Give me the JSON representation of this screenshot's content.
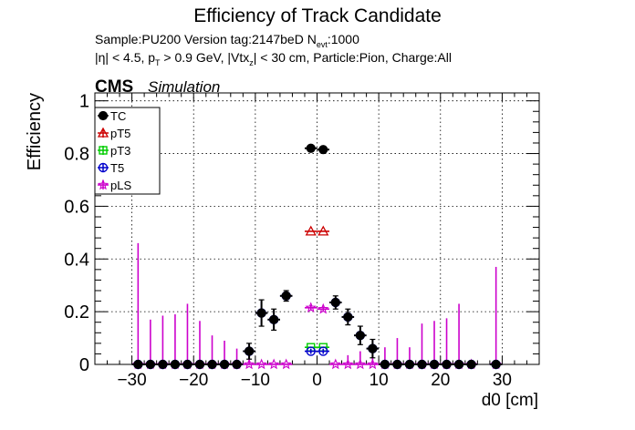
{
  "chart_data": {
    "type": "scatter",
    "title": "Efficiency of Track Candidate",
    "subtitle_line1": "Sample:PU200   Version tag:2147beD  N",
    "subtitle_line1_sub": "evt",
    "subtitle_line1_tail": ":1000",
    "subtitle_line2": "|η| < 4.5, p",
    "subtitle_line2_sub1": "T",
    "subtitle_line2_mid": " > 0.9 GeV, |Vtx",
    "subtitle_line2_sub2": "z",
    "subtitle_line2_tail": "| < 30 cm, Particle:Pion, Charge:All",
    "cms_label": "CMS",
    "cms_sublabel": "Simulation",
    "xlabel": "d0 [cm]",
    "ylabel": "Efficiency",
    "xlim": [
      -36,
      36
    ],
    "ylim": [
      0,
      1.03
    ],
    "x_ticks": [
      -30,
      -20,
      -10,
      0,
      10,
      20,
      30
    ],
    "x_tick_labels": [
      "−30",
      "−20",
      "−10",
      "0",
      "10",
      "20",
      "30"
    ],
    "y_ticks": [
      0,
      0.2,
      0.4,
      0.6,
      0.8,
      1
    ],
    "y_tick_labels": [
      "0",
      "0.2",
      "0.4",
      "0.6",
      "0.8",
      "1"
    ],
    "grid": true,
    "legend_position": "top-left",
    "bin_x": [
      -29,
      -27,
      -25,
      -23,
      -21,
      -19,
      -17,
      -15,
      -13,
      -11,
      -9,
      -7,
      -5,
      -3,
      -1,
      1,
      3,
      5,
      7,
      9,
      11,
      13,
      15,
      17,
      19,
      21,
      23,
      25,
      27,
      29
    ],
    "bin_halfwidth": 1,
    "series": [
      {
        "name": "TC",
        "color": "#000000",
        "marker": "filled-circle",
        "values": [
          0,
          0,
          0,
          0,
          0,
          0,
          0,
          0,
          0,
          0.05,
          0.195,
          0.17,
          0.26,
          null,
          0.82,
          0.815,
          0.235,
          0.18,
          0.11,
          0.06,
          0,
          0,
          0,
          0,
          0,
          0,
          0,
          0,
          null,
          0
        ],
        "err_up": [
          0,
          0,
          0,
          0,
          0,
          0,
          0,
          0,
          0,
          0.03,
          0.05,
          0.04,
          0.02,
          0,
          0.01,
          0.01,
          0.025,
          0.03,
          0.035,
          0.035,
          0,
          0,
          0,
          0,
          0,
          0,
          0,
          0,
          0,
          0
        ],
        "err_down": [
          0,
          0,
          0,
          0,
          0,
          0,
          0,
          0,
          0,
          0.03,
          0.05,
          0.04,
          0.02,
          0,
          0.01,
          0.01,
          0.025,
          0.03,
          0.035,
          0.035,
          0,
          0,
          0,
          0,
          0,
          0,
          0,
          0,
          0,
          0
        ]
      },
      {
        "name": "pT5",
        "color": "#cc0000",
        "marker": "open-triangle",
        "values": [
          null,
          null,
          null,
          null,
          null,
          null,
          null,
          null,
          null,
          null,
          null,
          null,
          null,
          null,
          0.505,
          0.505,
          null,
          null,
          null,
          null,
          null,
          null,
          null,
          null,
          null,
          null,
          null,
          null,
          null,
          null
        ]
      },
      {
        "name": "pT3",
        "color": "#00cc00",
        "marker": "open-square",
        "values": [
          null,
          null,
          null,
          null,
          null,
          null,
          null,
          null,
          null,
          null,
          null,
          null,
          null,
          null,
          0.065,
          0.065,
          null,
          null,
          null,
          null,
          null,
          null,
          null,
          null,
          null,
          null,
          null,
          null,
          null,
          null
        ]
      },
      {
        "name": "T5",
        "color": "#0000cc",
        "marker": "open-circle",
        "values": [
          0,
          0,
          0,
          0,
          0,
          0,
          0,
          0,
          0,
          0.05,
          0.195,
          0.17,
          0.26,
          null,
          0.05,
          0.05,
          0.235,
          0.18,
          0.11,
          0.06,
          0,
          0,
          0,
          0,
          0,
          0,
          0,
          0,
          null,
          0
        ],
        "err_up": [
          0,
          0,
          0,
          0,
          0,
          0,
          0,
          0,
          0,
          0.03,
          0.05,
          0.04,
          0.02,
          0,
          0.01,
          0.01,
          0.025,
          0.03,
          0.035,
          0.035,
          0,
          0,
          0,
          0,
          0,
          0,
          0,
          0,
          0,
          0
        ],
        "err_down": [
          0,
          0,
          0,
          0,
          0,
          0,
          0,
          0,
          0,
          0.03,
          0.05,
          0.04,
          0.02,
          0,
          0.01,
          0.01,
          0.025,
          0.03,
          0.035,
          0.035,
          0,
          0,
          0,
          0,
          0,
          0,
          0,
          0,
          0,
          0
        ]
      },
      {
        "name": "pLS",
        "color": "#cc00cc",
        "marker": "open-star",
        "values": [
          0,
          0,
          0,
          0,
          0,
          0,
          0,
          0,
          0,
          0,
          0,
          0,
          0,
          null,
          0.215,
          0.21,
          0,
          0,
          0,
          0,
          0,
          0,
          0,
          0,
          0,
          0,
          0,
          0,
          null,
          0
        ],
        "err_up": [
          0.46,
          0.17,
          0.185,
          0.19,
          0.23,
          0.165,
          0.11,
          0.09,
          0.06,
          0.07,
          0,
          0,
          0,
          0,
          0.01,
          0.01,
          0,
          0.035,
          0.05,
          0.06,
          0.065,
          0.1,
          0.065,
          0.155,
          0.165,
          0.175,
          0.23,
          0,
          0,
          0.37
        ],
        "err_down": [
          0,
          0,
          0,
          0,
          0,
          0,
          0,
          0,
          0,
          0,
          0,
          0,
          0,
          0,
          0.01,
          0.01,
          0,
          0,
          0,
          0,
          0,
          0,
          0,
          0,
          0,
          0,
          0,
          0,
          0,
          0
        ]
      }
    ]
  }
}
